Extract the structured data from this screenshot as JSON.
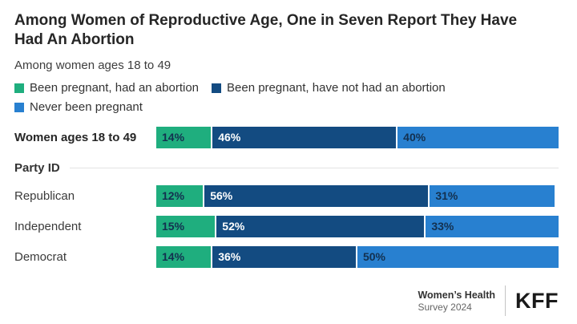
{
  "title": "Among Women of Reproductive Age, One in Seven Report They Have Had An Abortion",
  "subtitle": "Among women ages 18 to 49",
  "section_label": "Party ID",
  "footer": {
    "source_line1": "Women’s Health",
    "source_line2": "Survey 2024",
    "logo": "KFF"
  },
  "colors": {
    "abortion_green": "#1fae7e",
    "pregnant_dark_blue": "#134b81",
    "never_light_blue": "#2880d0",
    "dark_label": "#13304f",
    "light_label": "#ffffff"
  },
  "chart_data": {
    "type": "bar",
    "variant": "stacked-horizontal",
    "unit": "percent",
    "value_suffix": "%",
    "xlim": [
      0,
      100
    ],
    "grid": false,
    "legend_position": "top",
    "categories": [
      "Women ages 18 to 49",
      "Republican",
      "Independent",
      "Democrat"
    ],
    "series": [
      {
        "name": "Been pregnant, had an abortion",
        "color": "#1fae7e",
        "label_color": "#13304f",
        "values": [
          14,
          12,
          15,
          14
        ]
      },
      {
        "name": "Been pregnant, have not had an abortion",
        "color": "#134b81",
        "label_color": "#ffffff",
        "values": [
          46,
          56,
          52,
          36
        ]
      },
      {
        "name": "Never been pregnant",
        "color": "#2880d0",
        "label_color": "#13304f",
        "values": [
          40,
          31,
          33,
          50
        ]
      }
    ]
  }
}
